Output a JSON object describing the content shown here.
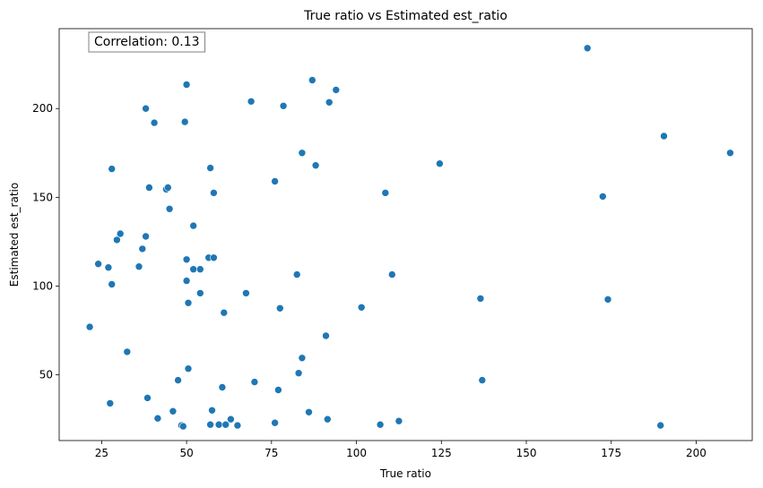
{
  "chart_data": {
    "type": "scatter",
    "title": "True ratio vs Estimated est_ratio",
    "xlabel": "True ratio",
    "ylabel": "Estimated est_ratio",
    "xlim": [
      12.5,
      216.5
    ],
    "ylim": [
      13,
      245
    ],
    "xticks": [
      25,
      50,
      75,
      100,
      125,
      150,
      175,
      200
    ],
    "yticks": [
      50,
      100,
      150,
      200
    ],
    "grid": false,
    "legend": "none",
    "annotation": "Correlation: 0.13",
    "marker_color": "#1f77b4",
    "points": [
      {
        "x": 21.5,
        "y": 77
      },
      {
        "x": 24,
        "y": 112.5
      },
      {
        "x": 27,
        "y": 110.5
      },
      {
        "x": 27.5,
        "y": 34
      },
      {
        "x": 28,
        "y": 101
      },
      {
        "x": 28,
        "y": 166
      },
      {
        "x": 29.5,
        "y": 126
      },
      {
        "x": 30.5,
        "y": 129.5
      },
      {
        "x": 32.5,
        "y": 63
      },
      {
        "x": 36,
        "y": 111
      },
      {
        "x": 37,
        "y": 121
      },
      {
        "x": 38,
        "y": 128
      },
      {
        "x": 38,
        "y": 200
      },
      {
        "x": 38.5,
        "y": 37
      },
      {
        "x": 39,
        "y": 155.5
      },
      {
        "x": 40.5,
        "y": 192
      },
      {
        "x": 41.5,
        "y": 25.5
      },
      {
        "x": 44,
        "y": 154.5
      },
      {
        "x": 44.5,
        "y": 155.5
      },
      {
        "x": 45,
        "y": 143.5
      },
      {
        "x": 46,
        "y": 29.5
      },
      {
        "x": 47.5,
        "y": 47
      },
      {
        "x": 48.5,
        "y": 21.5
      },
      {
        "x": 49,
        "y": 21
      },
      {
        "x": 49.5,
        "y": 192.5
      },
      {
        "x": 50,
        "y": 103
      },
      {
        "x": 50,
        "y": 115
      },
      {
        "x": 50,
        "y": 213.5
      },
      {
        "x": 50.5,
        "y": 53.5
      },
      {
        "x": 50.5,
        "y": 90.5
      },
      {
        "x": 52,
        "y": 109.5
      },
      {
        "x": 52,
        "y": 134
      },
      {
        "x": 54,
        "y": 109.5
      },
      {
        "x": 54,
        "y": 96
      },
      {
        "x": 56.5,
        "y": 116
      },
      {
        "x": 57,
        "y": 166.5
      },
      {
        "x": 57,
        "y": 22
      },
      {
        "x": 57.5,
        "y": 30
      },
      {
        "x": 58,
        "y": 116
      },
      {
        "x": 58,
        "y": 152.5
      },
      {
        "x": 59.5,
        "y": 22
      },
      {
        "x": 60.5,
        "y": 43
      },
      {
        "x": 61,
        "y": 85
      },
      {
        "x": 61.5,
        "y": 22
      },
      {
        "x": 63,
        "y": 25
      },
      {
        "x": 65,
        "y": 21.5
      },
      {
        "x": 67.5,
        "y": 96
      },
      {
        "x": 69,
        "y": 204
      },
      {
        "x": 70,
        "y": 46
      },
      {
        "x": 76,
        "y": 159
      },
      {
        "x": 76,
        "y": 23
      },
      {
        "x": 77,
        "y": 41.5
      },
      {
        "x": 77.5,
        "y": 87.5
      },
      {
        "x": 78.5,
        "y": 201.5
      },
      {
        "x": 82.5,
        "y": 106.5
      },
      {
        "x": 83,
        "y": 51
      },
      {
        "x": 84,
        "y": 59.5
      },
      {
        "x": 84,
        "y": 175
      },
      {
        "x": 86,
        "y": 29
      },
      {
        "x": 87,
        "y": 216
      },
      {
        "x": 88,
        "y": 168
      },
      {
        "x": 91,
        "y": 72
      },
      {
        "x": 91.5,
        "y": 25
      },
      {
        "x": 92,
        "y": 203.5
      },
      {
        "x": 94,
        "y": 210.5
      },
      {
        "x": 101.5,
        "y": 88
      },
      {
        "x": 107,
        "y": 22
      },
      {
        "x": 108.5,
        "y": 152.5
      },
      {
        "x": 110.5,
        "y": 106.5
      },
      {
        "x": 112.5,
        "y": 24
      },
      {
        "x": 124.5,
        "y": 169
      },
      {
        "x": 136.5,
        "y": 93
      },
      {
        "x": 137,
        "y": 47
      },
      {
        "x": 168,
        "y": 234
      },
      {
        "x": 172.5,
        "y": 150.5
      },
      {
        "x": 174,
        "y": 92.5
      },
      {
        "x": 189.5,
        "y": 21.5
      },
      {
        "x": 190.5,
        "y": 184.5
      },
      {
        "x": 210,
        "y": 175
      }
    ]
  }
}
